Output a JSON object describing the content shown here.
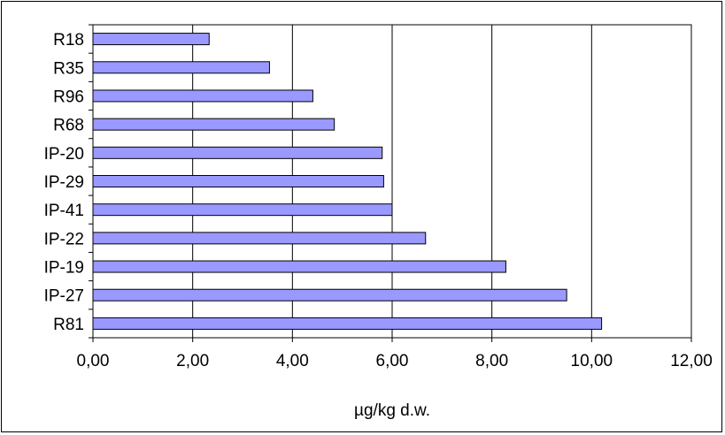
{
  "chart_data": {
    "type": "bar",
    "orientation": "horizontal",
    "categories": [
      "R18",
      "R35",
      "R96",
      "R68",
      "IP-20",
      "IP-29",
      "IP-41",
      "IP-22",
      "IP-19",
      "IP-27",
      "R81"
    ],
    "values": [
      2.33,
      3.54,
      4.41,
      4.84,
      5.8,
      5.83,
      6.0,
      6.67,
      8.28,
      9.5,
      10.2
    ],
    "xlabel": "µg/kg d.w.",
    "ylabel": "",
    "title": "",
    "xlim": [
      0,
      12
    ],
    "x_ticks": [
      0,
      2,
      4,
      6,
      8,
      10,
      12
    ],
    "x_tick_labels": [
      "0,00",
      "2,00",
      "4,00",
      "6,00",
      "8,00",
      "10,00",
      "12,00"
    ],
    "grid": "vertical gridlines",
    "legend": "none",
    "bar_color": "#9999ff",
    "bar_border_color": "#000000"
  }
}
